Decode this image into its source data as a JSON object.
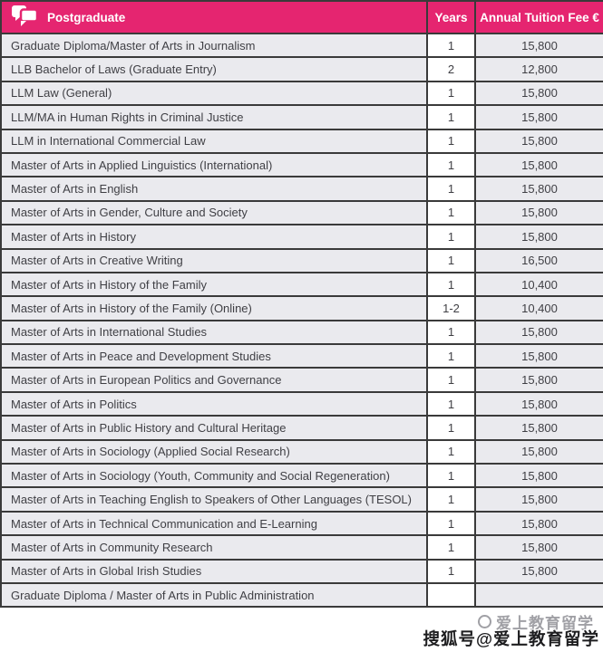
{
  "header": {
    "title": "Postgraduate",
    "col_years": "Years",
    "col_fee": "Annual Tuition Fee €"
  },
  "rows": [
    {
      "program": "Graduate Diploma/Master of Arts in Journalism",
      "years": "1",
      "fee": "15,800"
    },
    {
      "program": "LLB Bachelor of Laws (Graduate Entry)",
      "years": "2",
      "fee": "12,800"
    },
    {
      "program": "LLM Law (General)",
      "years": "1",
      "fee": "15,800"
    },
    {
      "program": "LLM/MA in Human Rights in Criminal Justice",
      "years": "1",
      "fee": "15,800"
    },
    {
      "program": "LLM in International Commercial Law",
      "years": "1",
      "fee": "15,800"
    },
    {
      "program": "Master of Arts in Applied Linguistics (International)",
      "years": "1",
      "fee": "15,800"
    },
    {
      "program": "Master of Arts in English",
      "years": "1",
      "fee": "15,800"
    },
    {
      "program": "Master of Arts in Gender, Culture and Society",
      "years": "1",
      "fee": "15,800"
    },
    {
      "program": "Master of Arts in History",
      "years": "1",
      "fee": "15,800"
    },
    {
      "program": "Master of Arts in Creative Writing",
      "years": "1",
      "fee": "16,500"
    },
    {
      "program": "Master of Arts in History of the Family",
      "years": "1",
      "fee": "10,400"
    },
    {
      "program": "Master of Arts in History of the Family (Online)",
      "years": "1-2",
      "fee": "10,400"
    },
    {
      "program": "Master of Arts in International Studies",
      "years": "1",
      "fee": "15,800"
    },
    {
      "program": "Master of Arts in Peace and Development Studies",
      "years": "1",
      "fee": "15,800"
    },
    {
      "program": "Master of Arts in European Politics and Governance",
      "years": "1",
      "fee": "15,800"
    },
    {
      "program": "Master of Arts in Politics",
      "years": "1",
      "fee": "15,800"
    },
    {
      "program": "Master of Arts in Public History and Cultural Heritage",
      "years": "1",
      "fee": "15,800"
    },
    {
      "program": "Master of Arts in Sociology (Applied Social Research)",
      "years": "1",
      "fee": "15,800"
    },
    {
      "program": "Master of Arts in Sociology (Youth, Community and Social Regeneration)",
      "years": "1",
      "fee": "15,800"
    },
    {
      "program": "Master of Arts in Teaching English to Speakers of Other Languages (TESOL)",
      "years": "1",
      "fee": "15,800"
    },
    {
      "program": "Master of Arts in Technical Communication and E-Learning",
      "years": "1",
      "fee": "15,800"
    },
    {
      "program": "Master of Arts in Community Research",
      "years": "1",
      "fee": "15,800"
    },
    {
      "program": "Master of Arts in Global Irish Studies",
      "years": "1",
      "fee": "15,800"
    },
    {
      "program": "Graduate Diploma / Master of Arts in Public Administration",
      "years": "",
      "fee": ""
    }
  ],
  "watermark": {
    "light_text": "爱上教育留学",
    "dark_text": "搜狐号@爱上教育留学"
  },
  "colors": {
    "pink": "#e52570",
    "row_bg": "#eaeaee",
    "border": "#3a3a3a",
    "text": "#3f3f44"
  }
}
